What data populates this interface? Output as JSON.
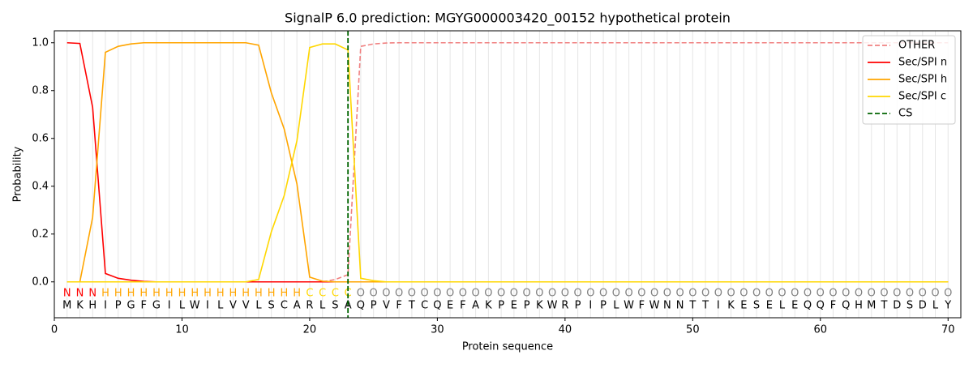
{
  "chart_data": {
    "type": "line",
    "title": "SignalP 6.0 prediction: MGYG000003420_00152 hypothetical protein",
    "x_label": "Protein sequence",
    "y_label": "Probability",
    "xlim": [
      0,
      71
    ],
    "ylim": [
      -0.15,
      1.05
    ],
    "xticks": [
      0,
      10,
      20,
      30,
      40,
      50,
      60,
      70
    ],
    "yticks": [
      {
        "value": 0,
        "label": "0.0"
      },
      {
        "value": 0.2,
        "label": "0.2"
      },
      {
        "value": 0.4,
        "label": "0.4"
      },
      {
        "value": 0.6,
        "label": "0.6"
      },
      {
        "value": 0.8,
        "label": "0.8"
      },
      {
        "value": 1,
        "label": "1.0"
      }
    ],
    "legend": "upper right",
    "x": [
      1,
      2,
      3,
      4,
      5,
      6,
      7,
      8,
      9,
      10,
      11,
      12,
      13,
      14,
      15,
      16,
      17,
      18,
      19,
      20,
      21,
      22,
      23,
      24,
      25,
      26,
      27,
      28,
      29,
      30,
      31,
      32,
      33,
      34,
      35,
      36,
      37,
      38,
      39,
      40,
      41,
      42,
      43,
      44,
      45,
      46,
      47,
      48,
      49,
      50,
      51,
      52,
      53,
      54,
      55,
      56,
      57,
      58,
      59,
      60,
      61,
      62,
      63,
      64,
      65,
      66,
      67,
      68,
      69,
      70
    ],
    "sequence": [
      "M",
      "K",
      "H",
      "I",
      "P",
      "G",
      "F",
      "G",
      "I",
      "L",
      "W",
      "I",
      "L",
      "V",
      "V",
      "L",
      "S",
      "C",
      "A",
      "R",
      "L",
      "S",
      "A",
      "Q",
      "P",
      "V",
      "F",
      "T",
      "C",
      "Q",
      "E",
      "F",
      "A",
      "K",
      "P",
      "E",
      "P",
      "K",
      "W",
      "R",
      "P",
      "I",
      "P",
      "L",
      "W",
      "F",
      "W",
      "N",
      "N",
      "T",
      "T",
      "I",
      "K",
      "E",
      "S",
      "E",
      "L",
      "E",
      "Q",
      "Q",
      "F",
      "Q",
      "H",
      "M",
      "T",
      "D",
      "S",
      "D",
      "L",
      "Y"
    ],
    "labels": [
      "N",
      "N",
      "N",
      "H",
      "H",
      "H",
      "H",
      "H",
      "H",
      "H",
      "H",
      "H",
      "H",
      "H",
      "H",
      "H",
      "H",
      "H",
      "H",
      "C",
      "C",
      "C",
      "C",
      "O",
      "O",
      "O",
      "O",
      "O",
      "O",
      "O",
      "O",
      "O",
      "O",
      "O",
      "O",
      "O",
      "O",
      "O",
      "O",
      "O",
      "O",
      "O",
      "O",
      "O",
      "O",
      "O",
      "O",
      "O",
      "O",
      "O",
      "O",
      "O",
      "O",
      "O",
      "O",
      "O",
      "O",
      "O",
      "O",
      "O",
      "O",
      "O",
      "O",
      "O",
      "O",
      "O",
      "O",
      "O",
      "O",
      "O"
    ],
    "label_colors": {
      "N": "#ff0000",
      "H": "#ffa500",
      "C": "#ffd700",
      "O": "#808080"
    },
    "series": [
      {
        "name": "OTHER",
        "color": "#f08080",
        "linestyle": "dashed",
        "values": [
          0,
          0,
          0,
          0,
          0,
          0,
          0,
          0,
          0,
          0,
          0,
          0,
          0,
          0,
          0,
          0,
          0,
          0,
          0,
          0,
          0,
          0.01,
          0.03,
          0.985,
          0.995,
          0.999,
          1,
          1,
          1,
          1,
          1,
          1,
          1,
          1,
          1,
          1,
          1,
          1,
          1,
          1,
          1,
          1,
          1,
          1,
          1,
          1,
          1,
          1,
          1,
          1,
          1,
          1,
          1,
          1,
          1,
          1,
          1,
          1,
          1,
          1,
          1,
          1,
          1,
          1,
          1,
          1,
          1,
          1,
          1,
          1
        ]
      },
      {
        "name": "Sec/SPI n",
        "color": "#ff0000",
        "linestyle": "solid",
        "values": [
          1,
          0.997,
          0.73,
          0.035,
          0.015,
          0.007,
          0.002,
          0,
          0,
          0,
          0,
          0,
          0,
          0,
          0,
          0,
          0,
          0,
          0,
          0,
          0,
          0,
          0,
          0,
          0,
          0,
          0,
          0,
          0,
          0,
          0,
          0,
          0,
          0,
          0,
          0,
          0,
          0,
          0,
          0,
          0,
          0,
          0,
          0,
          0,
          0,
          0,
          0,
          0,
          0,
          0,
          0,
          0,
          0,
          0,
          0,
          0,
          0,
          0,
          0,
          0,
          0,
          0,
          0,
          0,
          0,
          0,
          0,
          0,
          0
        ]
      },
      {
        "name": "Sec/SPI h",
        "color": "#ffa500",
        "linestyle": "solid",
        "values": [
          0,
          0,
          0.27,
          0.96,
          0.985,
          0.995,
          1,
          1,
          1,
          1,
          1,
          1,
          1,
          1,
          1,
          0.99,
          0.79,
          0.64,
          0.41,
          0.02,
          0.003,
          0,
          0,
          0,
          0,
          0,
          0,
          0,
          0,
          0,
          0,
          0,
          0,
          0,
          0,
          0,
          0,
          0,
          0,
          0,
          0,
          0,
          0,
          0,
          0,
          0,
          0,
          0,
          0,
          0,
          0,
          0,
          0,
          0,
          0,
          0,
          0,
          0,
          0,
          0,
          0,
          0,
          0,
          0,
          0,
          0,
          0,
          0,
          0,
          0
        ]
      },
      {
        "name": "Sec/SPI c",
        "color": "#ffd700",
        "linestyle": "solid",
        "values": [
          0,
          0,
          0,
          0,
          0,
          0,
          0,
          0,
          0,
          0,
          0,
          0,
          0,
          0,
          0,
          0.01,
          0.21,
          0.36,
          0.59,
          0.98,
          0.995,
          0.995,
          0.97,
          0.015,
          0.005,
          0,
          0,
          0,
          0,
          0,
          0,
          0,
          0,
          0,
          0,
          0,
          0,
          0,
          0,
          0,
          0,
          0,
          0,
          0,
          0,
          0,
          0,
          0,
          0,
          0,
          0,
          0,
          0,
          0,
          0,
          0,
          0,
          0,
          0,
          0,
          0,
          0,
          0,
          0,
          0,
          0,
          0,
          0,
          0,
          0
        ]
      }
    ],
    "cs": {
      "name": "CS",
      "x": 23,
      "color": "#006400",
      "linestyle": "dashed"
    }
  }
}
